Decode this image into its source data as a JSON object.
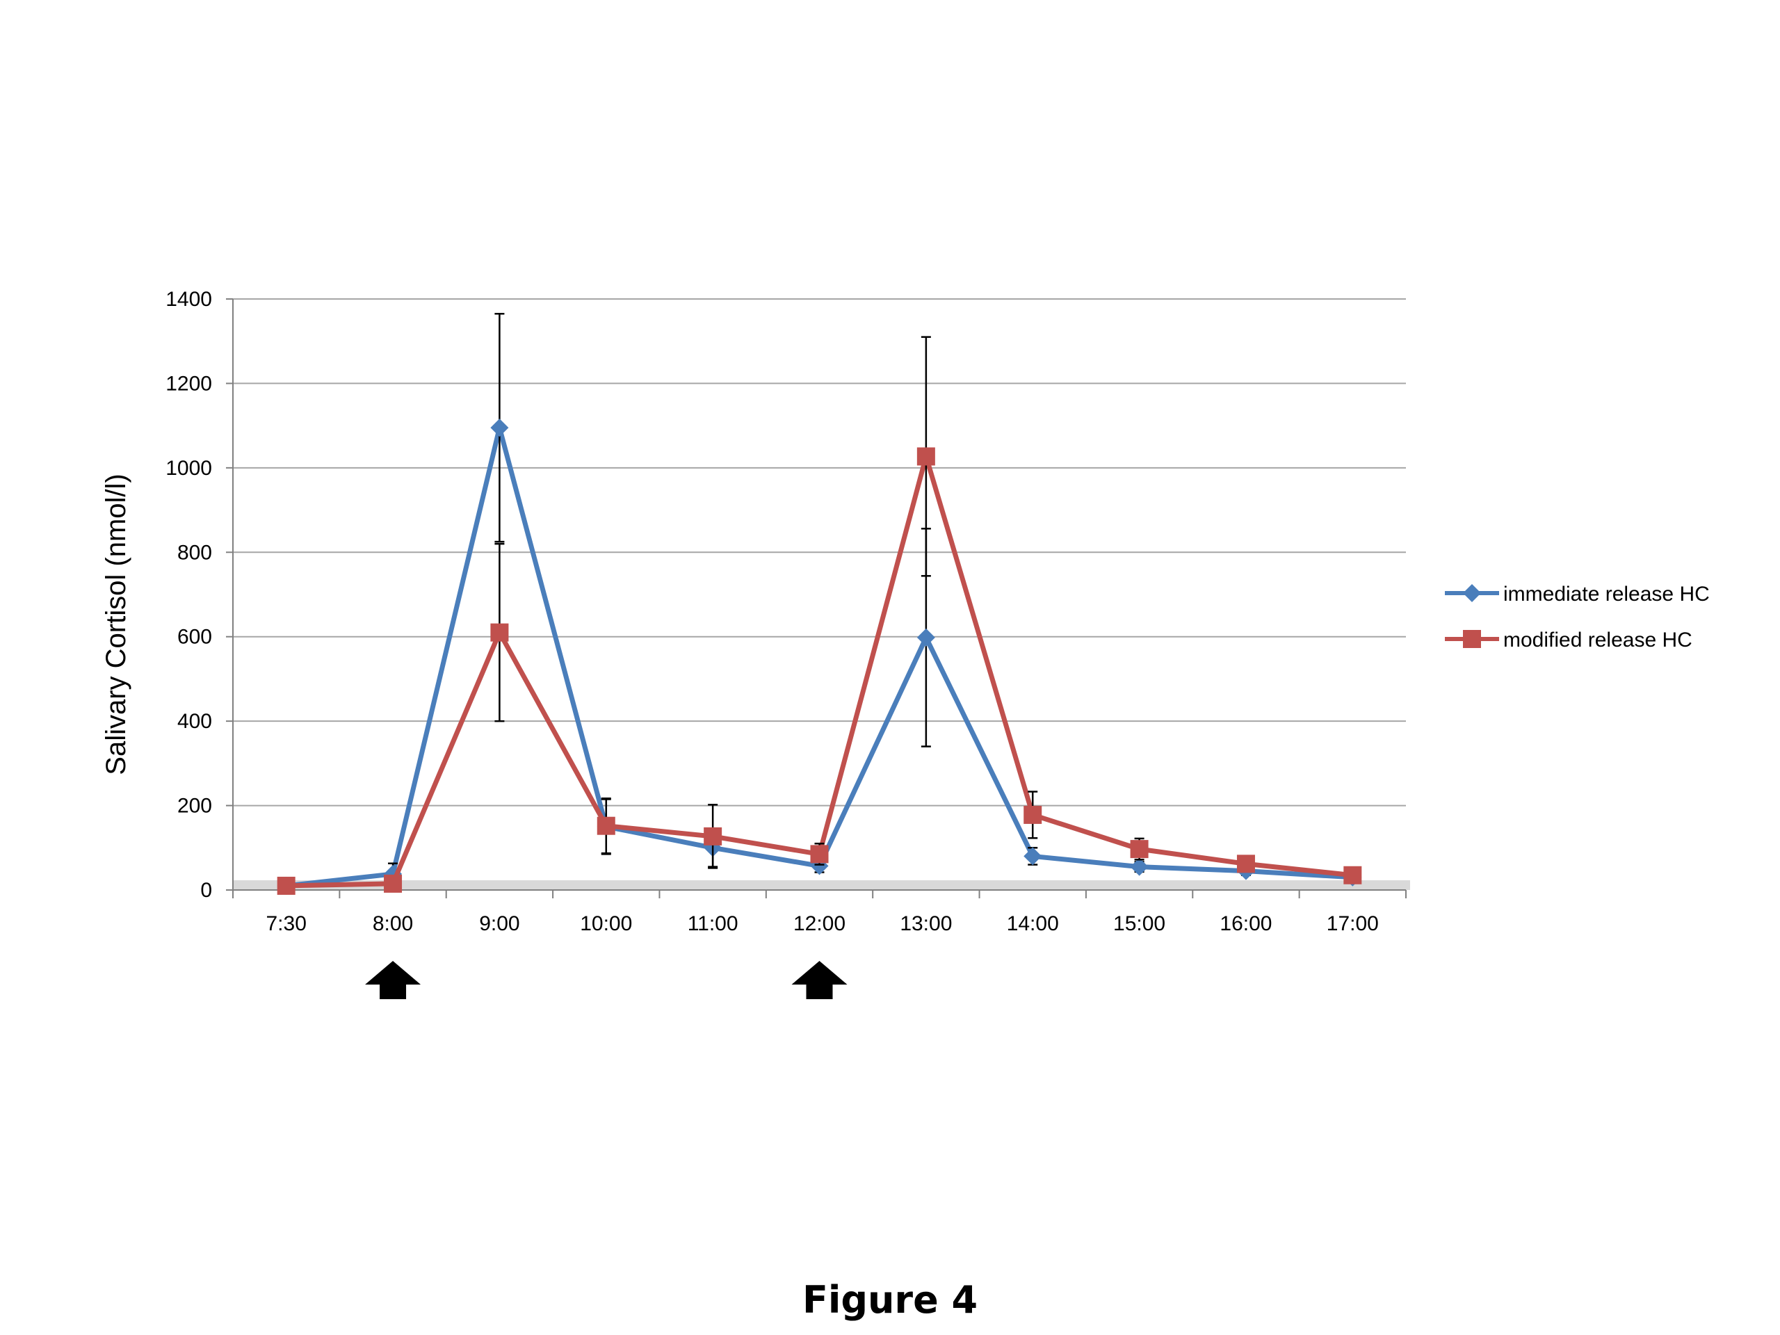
{
  "caption": "Figure 4",
  "colors": {
    "series1": "#4a7ebb",
    "series2": "#c0504d",
    "grid": "#a6a6a6",
    "baseline_band": "#d9d9d9"
  },
  "chart_data": {
    "type": "line",
    "title": "",
    "xlabel": "",
    "ylabel": "Salivary Cortisol (nmol/l)",
    "ylim": [
      0,
      1400
    ],
    "yticks": [
      0,
      200,
      400,
      600,
      800,
      1000,
      1200,
      1400
    ],
    "categories": [
      "7:30",
      "8:00",
      "9:00",
      "10:00",
      "11:00",
      "12:00",
      "13:00",
      "14:00",
      "15:00",
      "16:00",
      "17:00"
    ],
    "grid": true,
    "legend_position": "right",
    "series": [
      {
        "name": "immediate release HC",
        "color": "#4a7ebb",
        "marker": "diamond",
        "values": [
          10,
          38,
          1095,
          150,
          100,
          57,
          598,
          80,
          55,
          45,
          30
        ],
        "error": [
          0,
          25,
          270,
          65,
          45,
          15,
          258,
          20,
          12,
          10,
          8
        ]
      },
      {
        "name": "modified release HC",
        "color": "#c0504d",
        "marker": "square",
        "values": [
          10,
          15,
          610,
          152,
          127,
          85,
          1027,
          178,
          97,
          62,
          35
        ],
        "error": [
          0,
          0,
          210,
          65,
          75,
          25,
          283,
          55,
          25,
          12,
          8
        ]
      }
    ],
    "annotations": [
      {
        "type": "up-arrow",
        "at": "8:00",
        "icon": "up-arrow-icon"
      },
      {
        "type": "up-arrow",
        "at": "12:00",
        "icon": "up-arrow-icon"
      }
    ]
  }
}
